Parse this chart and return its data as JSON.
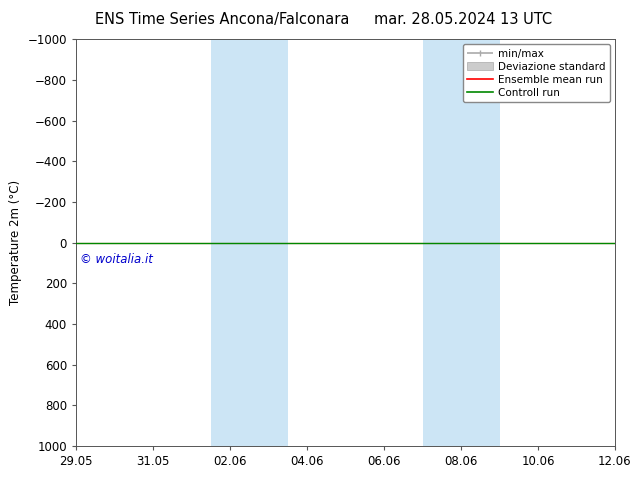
{
  "title_left": "ENS Time Series Ancona/Falconara",
  "title_right": "mar. 28.05.2024 13 UTC",
  "ylabel": "Temperature 2m (°C)",
  "ylim_top": -1000,
  "ylim_bottom": 1000,
  "yticks": [
    -1000,
    -800,
    -600,
    -400,
    -200,
    0,
    200,
    400,
    600,
    800,
    1000
  ],
  "xtick_labels": [
    "29.05",
    "31.05",
    "02.06",
    "04.06",
    "06.06",
    "08.06",
    "10.06",
    "12.06"
  ],
  "xtick_positions": [
    0,
    2,
    4,
    6,
    8,
    10,
    12,
    14
  ],
  "xlim": [
    0,
    14
  ],
  "shaded_regions": [
    {
      "start": 3.5,
      "end": 5.5
    },
    {
      "start": 9.0,
      "end": 11.0
    }
  ],
  "shade_color": "#cce5f5",
  "watermark": "© woitalia.it",
  "watermark_color": "#0000cc",
  "flat_line_y": 0,
  "line_green": "#008800",
  "line_red": "#ff0000",
  "legend_items": [
    {
      "label": "min/max",
      "color": "#aaaaaa",
      "lw": 1.2
    },
    {
      "label": "Deviazione standard",
      "color": "#cccccc",
      "lw": 8
    },
    {
      "label": "Ensemble mean run",
      "color": "#ff0000",
      "lw": 1.2
    },
    {
      "label": "Controll run",
      "color": "#008800",
      "lw": 1.2
    }
  ],
  "bg_color": "#ffffff",
  "spine_color": "#555555",
  "title_fontsize": 10.5,
  "tick_fontsize": 8.5,
  "ylabel_fontsize": 8.5,
  "legend_fontsize": 7.5,
  "watermark_fontsize": 8.5
}
